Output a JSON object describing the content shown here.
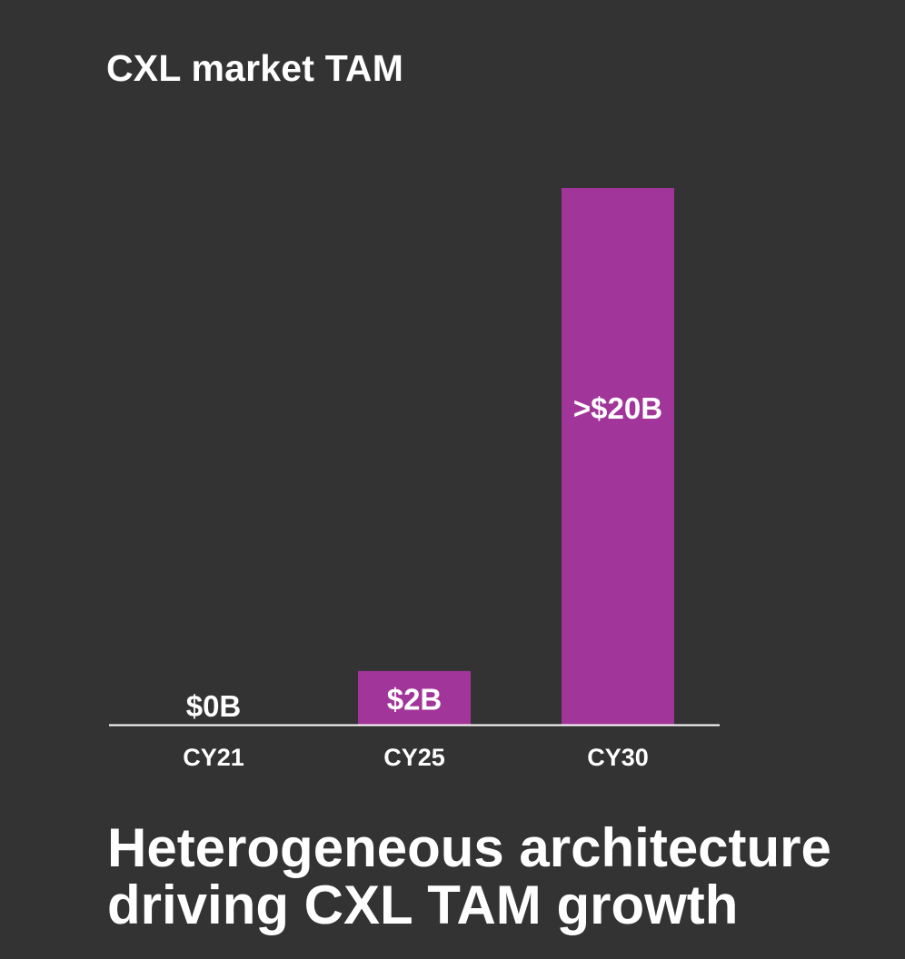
{
  "chart_data": {
    "type": "bar",
    "title": "CXL market TAM",
    "categories": [
      "CY21",
      "CY25",
      "CY30"
    ],
    "values": [
      0,
      2,
      20
    ],
    "data_labels": [
      "$0B",
      "$2B",
      ">$20B"
    ],
    "xlabel": "",
    "ylabel": "",
    "ylim": [
      0,
      20
    ],
    "grid": false,
    "legend": "none",
    "bar_color": "#A1359A",
    "label_color": "#FFFFFF",
    "axis_color": "#FFFFFF"
  },
  "headline": {
    "line1": "Heterogeneous architecture",
    "line2": "driving CXL TAM growth"
  },
  "colors": {
    "background": "#333333",
    "text": "#FFFFFF"
  }
}
